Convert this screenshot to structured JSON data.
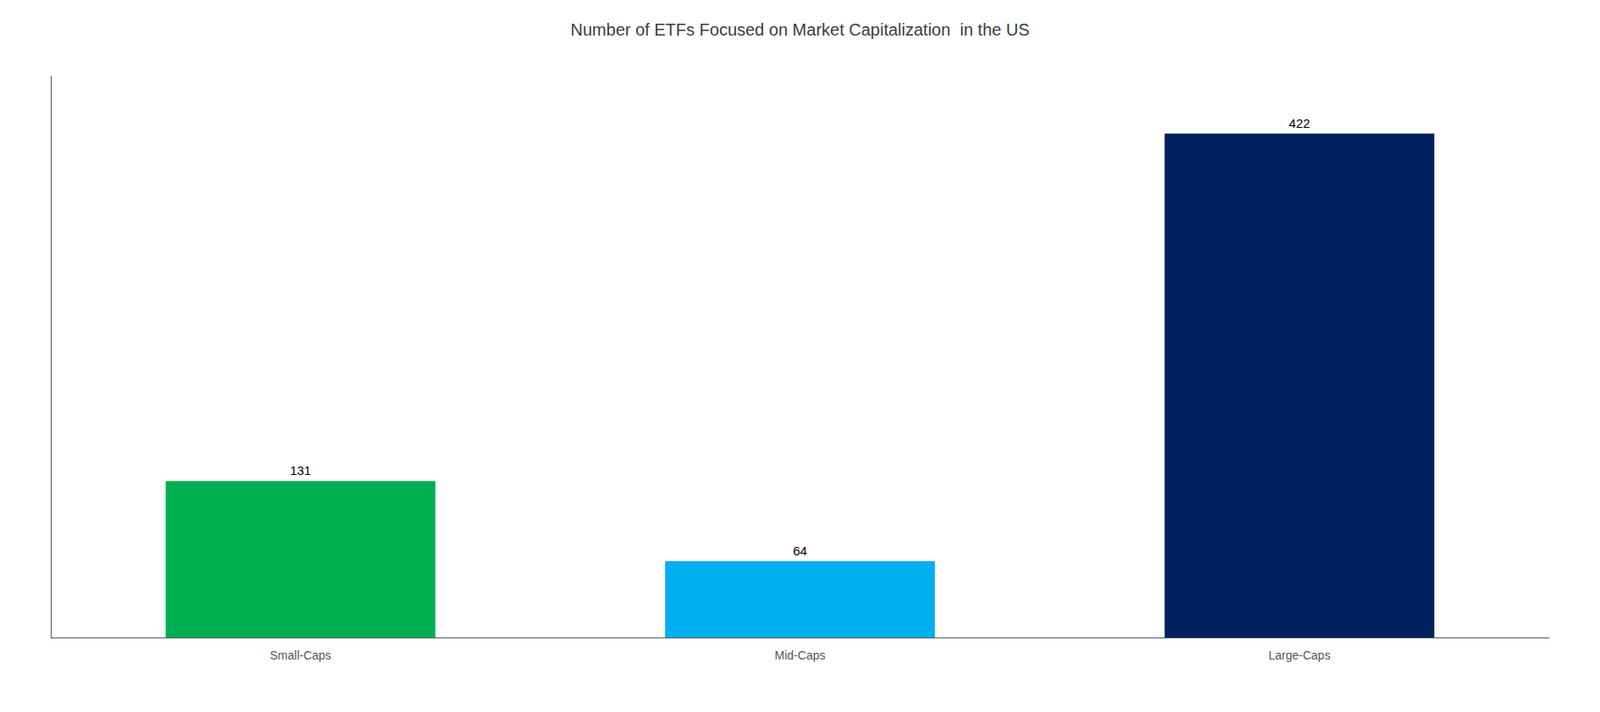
{
  "chart_data": {
    "type": "bar",
    "title": "Number of ETFs Focused on Market Capitalization  in the US",
    "categories": [
      "Small-Caps",
      "Mid-Caps",
      "Large-Caps"
    ],
    "values": [
      131,
      64,
      422
    ],
    "colors": [
      "#00B050",
      "#00B0F0",
      "#002060"
    ],
    "ylim": [
      0,
      470
    ],
    "data_labels": true,
    "tick_labels": "x",
    "grid": false
  }
}
